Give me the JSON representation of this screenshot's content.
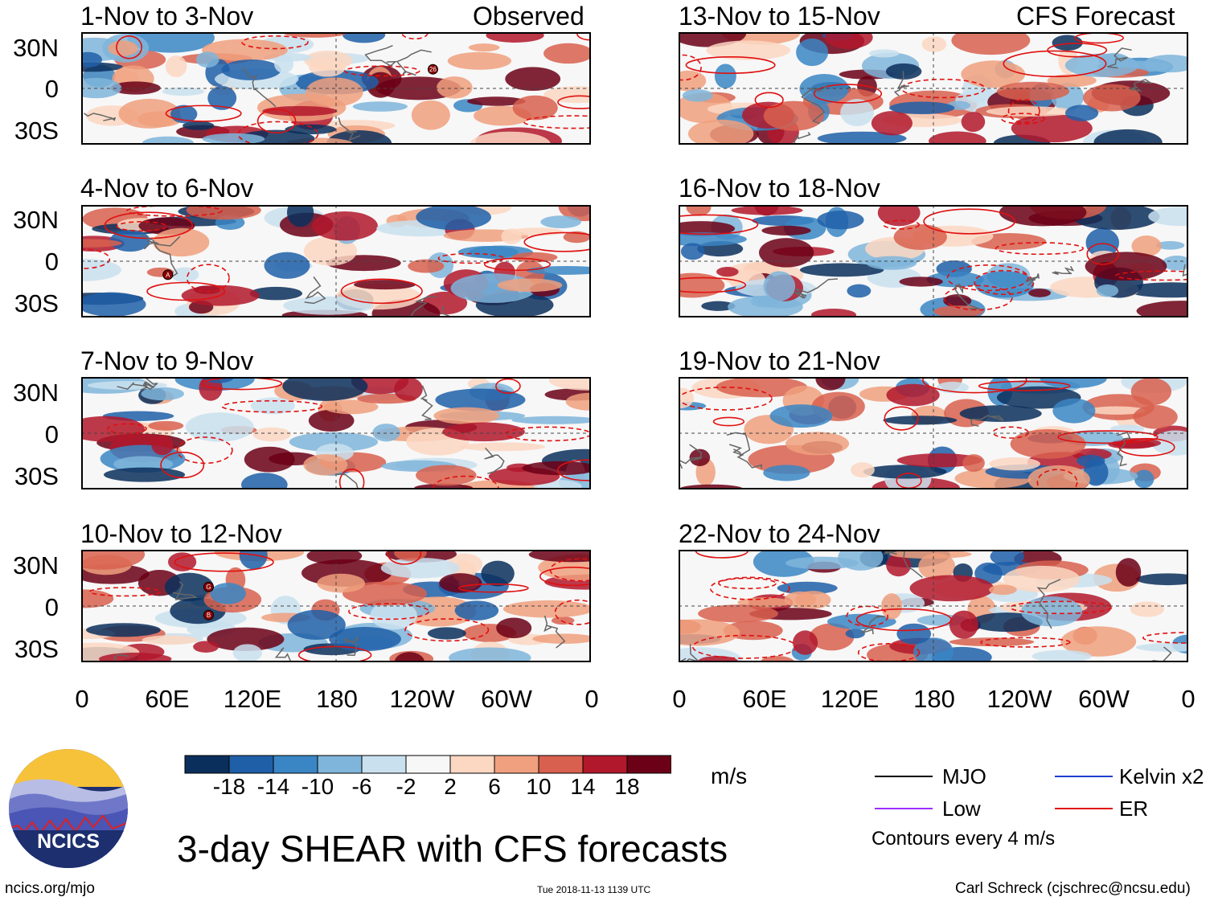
{
  "panels": {
    "left": [
      {
        "title": "1-Nov to 3-Nov",
        "tag": "Observed"
      },
      {
        "title": "4-Nov to 6-Nov",
        "tag": ""
      },
      {
        "title": "7-Nov to 9-Nov",
        "tag": ""
      },
      {
        "title": "10-Nov to 12-Nov",
        "tag": ""
      }
    ],
    "right": [
      {
        "title": "13-Nov to 15-Nov",
        "tag": "CFS Forecast"
      },
      {
        "title": "16-Nov to 18-Nov",
        "tag": ""
      },
      {
        "title": "19-Nov to 21-Nov",
        "tag": ""
      },
      {
        "title": "22-Nov to 24-Nov",
        "tag": ""
      }
    ]
  },
  "y_ticks": [
    "30N",
    "0",
    "30S"
  ],
  "x_ticks": [
    "0",
    "60E",
    "120E",
    "180",
    "120W",
    "60W",
    "0"
  ],
  "storm_labels": [
    "26",
    "A",
    "G",
    "B"
  ],
  "colorbar": {
    "labels": [
      "-18",
      "-14",
      "-10",
      "-6",
      "-2",
      "2",
      "6",
      "10",
      "14",
      "18"
    ],
    "units": "m/s",
    "colors": [
      "#0b2f5c",
      "#1f5fa8",
      "#3a86c4",
      "#7fb5da",
      "#c9e0ef",
      "#f7f7f7",
      "#fcd7c2",
      "#f0a07e",
      "#d8604e",
      "#b2182b",
      "#6b0016"
    ]
  },
  "legend": {
    "mjo": {
      "label": "MJO",
      "color": "#000000"
    },
    "kelvin": {
      "label": "Kelvin x2",
      "color": "#1f3fd0"
    },
    "low": {
      "label": "Low",
      "color": "#9b30ff"
    },
    "er": {
      "label": "ER",
      "color": "#e01010"
    },
    "contours": "Contours every 4 m/s"
  },
  "logo_text": "NCICS",
  "main_title": "3-day SHEAR with CFS forecasts",
  "url": "ncics.org/mjo",
  "timestamp": "Tue 2018-11-13 1139 UTC",
  "credit": "Carl Schreck (cjschrec@ncsu.edu)"
}
